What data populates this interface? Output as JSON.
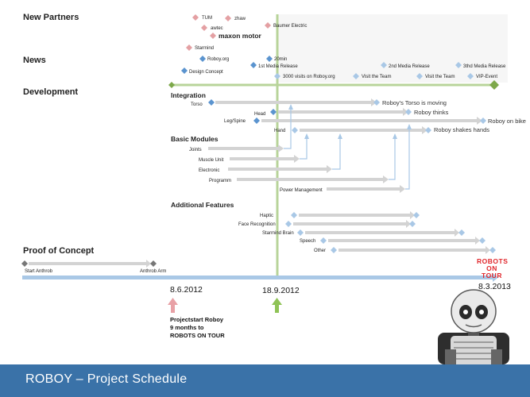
{
  "footer": {
    "title": "ROBOY – Project Schedule"
  },
  "logo": {
    "line1": "ROBOTS",
    "line2": "ON TOUR"
  },
  "colors": {
    "partner": "#e4a0a3",
    "news": "#5b94cf",
    "dev": "#8ab55a",
    "timeline": "#a9c8e6",
    "arrow_pink": "#e8a1a6",
    "arrow_green": "#8fc356",
    "footer": "#3a72a8",
    "bar": "#d3d3d3"
  },
  "sections": {
    "new_partners": "New Partners",
    "news": "News",
    "development": "Development",
    "proof_of_concept": "Proof of Concept"
  },
  "partners": [
    {
      "label": "TUM"
    },
    {
      "label": "zhaw"
    },
    {
      "label": "awtec"
    },
    {
      "label": "Baumer Electric"
    },
    {
      "label": "maxon motor"
    },
    {
      "label": "Starmind"
    }
  ],
  "news": [
    {
      "label": "Roboy.org"
    },
    {
      "label": "20min"
    },
    {
      "label": "1st Media Release"
    },
    {
      "label": "Design Concept"
    },
    {
      "label": "3000 visits on Roboy.org"
    },
    {
      "label": "Visit the Team"
    },
    {
      "label": "2nd Media Release"
    },
    {
      "label": "Visit the Team"
    },
    {
      "label": "3thd Media Release"
    },
    {
      "label": "VIP-Event"
    }
  ],
  "integration": {
    "title": "Integration",
    "rows": [
      {
        "label": "Torso",
        "milestone": "Roboy's Torso is moving"
      },
      {
        "label": "Head",
        "milestone": "Roboy thinks"
      },
      {
        "label": "Leg/Spine",
        "milestone": "Roboy on bike"
      },
      {
        "label": "Hand",
        "milestone": "Roboy shakes hands"
      }
    ]
  },
  "basic_modules": {
    "title": "Basic Modules",
    "rows": [
      {
        "label": "Joints"
      },
      {
        "label": "Muscle Unit"
      },
      {
        "label": "Electronic"
      },
      {
        "label": "Programm"
      },
      {
        "label": "Power Management"
      }
    ]
  },
  "additional_features": {
    "title": "Additional Features",
    "rows": [
      {
        "label": "Haptic"
      },
      {
        "label": "Face Recognition"
      },
      {
        "label": "Starmind Brain"
      },
      {
        "label": "Speech"
      },
      {
        "label": "Other"
      }
    ]
  },
  "proof": {
    "start": "Start Anthrob",
    "end": "Anthrob Arm"
  },
  "dates": {
    "start": "8.6.2012",
    "mid": "18.9.2012",
    "end": "8.3.2013"
  },
  "note": {
    "line1": "Projectstart Roboy",
    "line2": "9 months to",
    "line3": "ROBOTS ON TOUR"
  }
}
